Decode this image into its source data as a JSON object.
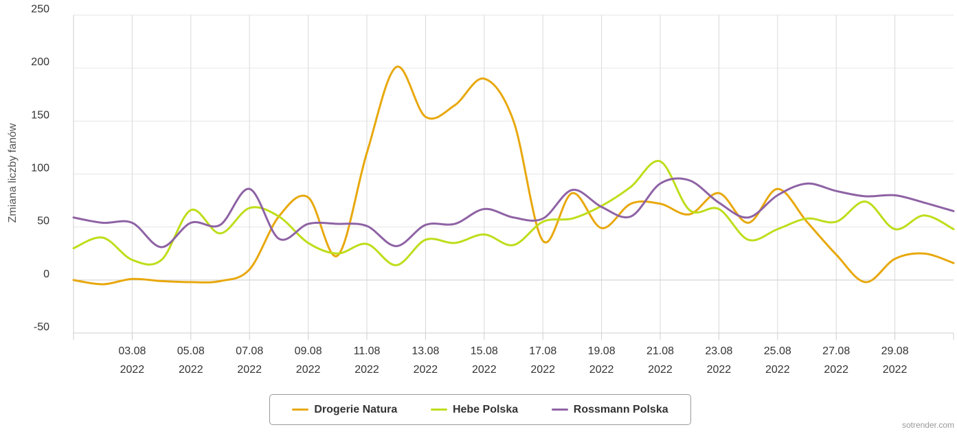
{
  "chart_data": {
    "type": "line",
    "ylabel": "Zmiana liczby fanów",
    "xlabel": "",
    "ylim": [
      -50,
      250
    ],
    "yticks": [
      "-50",
      "0",
      "50",
      "100",
      "150",
      "200",
      "250"
    ],
    "xtick_labels": [
      {
        "date": "03.08",
        "year": "2022"
      },
      {
        "date": "05.08",
        "year": "2022"
      },
      {
        "date": "07.08",
        "year": "2022"
      },
      {
        "date": "09.08",
        "year": "2022"
      },
      {
        "date": "11.08",
        "year": "2022"
      },
      {
        "date": "13.08",
        "year": "2022"
      },
      {
        "date": "15.08",
        "year": "2022"
      },
      {
        "date": "17.08",
        "year": "2022"
      },
      {
        "date": "19.08",
        "year": "2022"
      },
      {
        "date": "21.08",
        "year": "2022"
      },
      {
        "date": "23.08",
        "year": "2022"
      },
      {
        "date": "25.08",
        "year": "2022"
      },
      {
        "date": "27.08",
        "year": "2022"
      },
      {
        "date": "29.08",
        "year": "2022"
      }
    ],
    "x": [
      "2022-08-01",
      "2022-08-02",
      "2022-08-03",
      "2022-08-04",
      "2022-08-05",
      "2022-08-06",
      "2022-08-07",
      "2022-08-08",
      "2022-08-09",
      "2022-08-10",
      "2022-08-11",
      "2022-08-12",
      "2022-08-13",
      "2022-08-14",
      "2022-08-15",
      "2022-08-16",
      "2022-08-17",
      "2022-08-18",
      "2022-08-19",
      "2022-08-20",
      "2022-08-21",
      "2022-08-22",
      "2022-08-23",
      "2022-08-24",
      "2022-08-25",
      "2022-08-26",
      "2022-08-27",
      "2022-08-28",
      "2022-08-29",
      "2022-08-30",
      "2022-08-31"
    ],
    "series": [
      {
        "name": "Drogerie Natura",
        "color": "#e8a80c",
        "values": [
          0,
          -4,
          1,
          -1,
          -2,
          -1,
          10,
          60,
          78,
          23,
          120,
          201,
          154,
          165,
          190,
          150,
          37,
          82,
          49,
          72,
          72,
          62,
          82,
          54,
          86,
          55,
          24,
          -2,
          20,
          25,
          16
        ]
      },
      {
        "name": "Hebe Polska",
        "color": "#bfdd1a",
        "values": [
          30,
          40,
          19,
          19,
          66,
          44,
          68,
          60,
          35,
          25,
          34,
          14,
          38,
          35,
          43,
          33,
          55,
          58,
          70,
          88,
          112,
          66,
          67,
          38,
          48,
          58,
          55,
          74,
          48,
          61,
          48
        ]
      },
      {
        "name": "Rossmann Polska",
        "color": "#8e62a4",
        "values": [
          59,
          54,
          54,
          31,
          54,
          52,
          86,
          39,
          53,
          53,
          51,
          32,
          52,
          53,
          67,
          59,
          58,
          85,
          69,
          60,
          91,
          94,
          73,
          59,
          80,
          91,
          84,
          79,
          80,
          73,
          65
        ]
      }
    ]
  },
  "legend": {
    "items": [
      {
        "label": "Drogerie Natura",
        "color": "#e8a80c"
      },
      {
        "label": "Hebe Polska",
        "color": "#bfdd1a"
      },
      {
        "label": "Rossmann Polska",
        "color": "#8e62a4"
      }
    ]
  },
  "credit": "sotrender.com"
}
